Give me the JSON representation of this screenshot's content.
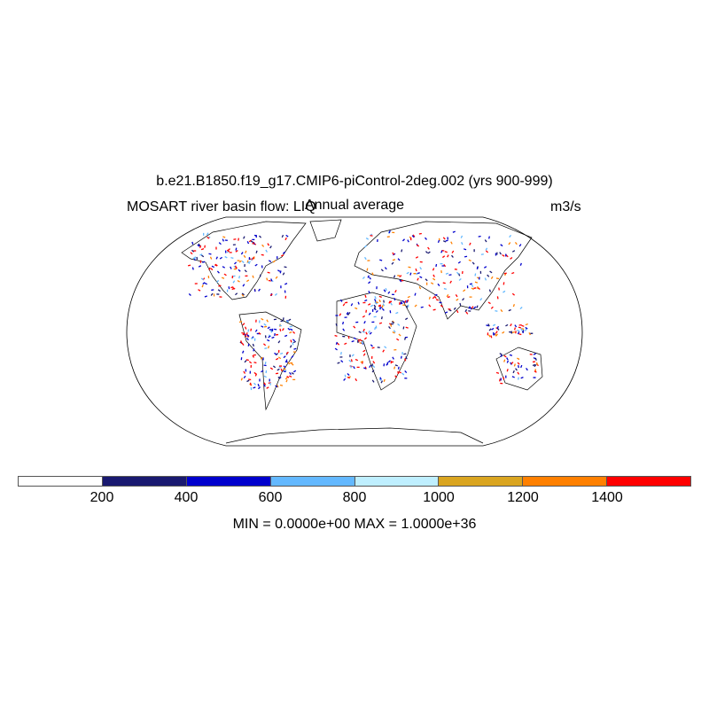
{
  "title": "b.e21.B1850.f19_g17.CMIP6-piControl-2deg.002 (yrs 900-999)",
  "left_string": "MOSART river basin flow: LIQ",
  "center_string": "Annual average",
  "right_string": "m3/s",
  "projection": "Robinson",
  "colorbar": {
    "colors": [
      "#ffffff",
      "#191970",
      "#0000cd",
      "#63b8ff",
      "#bfefff",
      "#daa520",
      "#ff8000",
      "#ff0000"
    ],
    "labels": [
      "200",
      "400",
      "600",
      "800",
      "1000",
      "1200",
      "1400"
    ]
  },
  "minmax": "MIN = 0.0000e+00 MAX = 1.0000e+36"
}
